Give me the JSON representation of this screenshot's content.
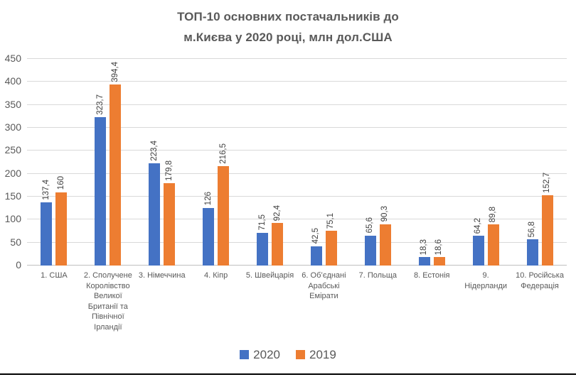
{
  "title_lines": [
    "ТОП-10 основних постачальників до",
    "м.Києва у 2020 році, млн дол.США"
  ],
  "category_labels_display": [
    [
      "1. США"
    ],
    [
      "2. Сполучене",
      "Королівство",
      "Великої",
      "Британії та",
      "Північної",
      "Ірландії"
    ],
    [
      "3. Німеччина"
    ],
    [
      "4. Кіпр"
    ],
    [
      "5. Швейцарія"
    ],
    [
      "6. Об’єднані",
      "Арабські",
      "Емірати"
    ],
    [
      "7. Польща"
    ],
    [
      "8. Естонія"
    ],
    [
      "9.",
      "Нідерланди"
    ],
    [
      "10. Російська",
      "Федерація"
    ]
  ],
  "layout_colors": {
    "grid": "#D9D9D9",
    "axis_line": "#BFBFBF",
    "axis_text": "#595959",
    "data_label_text": "#404040",
    "title_text": "#595959",
    "bottom_rule": "#000000"
  },
  "chart_data": {
    "type": "bar",
    "title": "ТОП-10 основних постачальників до м.Києва у 2020 році, млн дол.США",
    "xlabel": "",
    "ylabel": "",
    "ylim": [
      0,
      450
    ],
    "ytick_step": 50,
    "yticks": [
      0,
      50,
      100,
      150,
      200,
      250,
      300,
      350,
      400,
      450
    ],
    "grid": true,
    "legend_position": "bottom",
    "data_labels_rotated": true,
    "categories": [
      "1. США",
      "2. Сполучене Королівство Великої Британії та Північної Ірландії",
      "3. Німеччина",
      "4. Кіпр",
      "5. Швейцарія",
      "6. Об’єднані Арабські Емірати",
      "7. Польща",
      "8. Естонія",
      "9. Нідерланди",
      "10. Російська Федерація"
    ],
    "series": [
      {
        "name": "2020",
        "color": "#4472C4",
        "values": [
          137.4,
          323.7,
          223.4,
          126,
          71.5,
          42.5,
          65.6,
          18.3,
          64.2,
          56.8
        ],
        "labels": [
          "137,4",
          "323,7",
          "223,4",
          "126",
          "71,5",
          "42,5",
          "65,6",
          "18,3",
          "64,2",
          "56,8"
        ]
      },
      {
        "name": "2019",
        "color": "#ED7D31",
        "values": [
          160,
          394.4,
          179.8,
          216.5,
          92.4,
          75.1,
          90.3,
          18.6,
          89.8,
          152.7
        ],
        "labels": [
          "160",
          "394,4",
          "179,8",
          "216,5",
          "92,4",
          "75,1",
          "90,3",
          "18,6",
          "89,8",
          "152,7"
        ]
      }
    ]
  }
}
